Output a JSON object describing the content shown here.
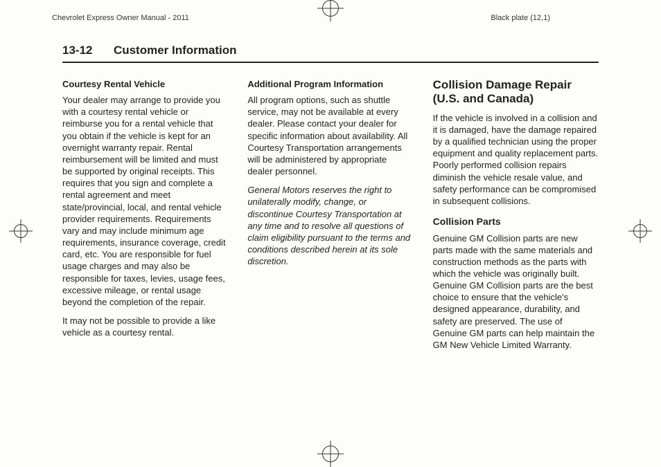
{
  "header": {
    "left": "Chevrolet Express Owner Manual - 2011",
    "right": "Black plate (12,1)"
  },
  "section": {
    "number": "13-12",
    "title": "Customer Information"
  },
  "col1": {
    "h1": "Courtesy Rental Vehicle",
    "p1": "Your dealer may arrange to provide you with a courtesy rental vehicle or reimburse you for a rental vehicle that you obtain if the vehicle is kept for an overnight warranty repair. Rental reimbursement will be limited and must be supported by original receipts. This requires that you sign and complete a rental agreement and meet state/provincial, local, and rental vehicle provider requirements. Requirements vary and may include minimum age requirements, insurance coverage, credit card, etc. You are responsible for fuel usage charges and may also be responsible for taxes, levies, usage fees, excessive mileage, or rental usage beyond the completion of the repair.",
    "p2": "It may not be possible to provide a like vehicle as a courtesy rental."
  },
  "col2": {
    "h1": "Additional Program Information",
    "p1": "All program options, such as shuttle service, may not be available at every dealer. Please contact your dealer for specific information about availability. All Courtesy Transportation arrangements will be administered by appropriate dealer personnel.",
    "p2": "General Motors reserves the right to unilaterally modify, change, or discontinue Courtesy Transportation at any time and to resolve all questions of claim eligibility pursuant to the terms and conditions described herein at its sole discretion."
  },
  "col3": {
    "mainhead": "Collision Damage Repair (U.S. and Canada)",
    "p1": "If the vehicle is involved in a collision and it is damaged, have the damage repaired by a qualified technician using the proper equipment and quality replacement parts. Poorly performed collision repairs diminish the vehicle resale value, and safety performance can be compromised in subsequent collisions.",
    "h2": "Collision Parts",
    "p2": "Genuine GM Collision parts are new parts made with the same materials and construction methods as the parts with which the vehicle was originally built. Genuine GM Collision parts are the best choice to ensure that the vehicle's designed appearance, durability, and safety are preserved. The use of Genuine GM parts can help maintain the GM New Vehicle Limited Warranty."
  }
}
